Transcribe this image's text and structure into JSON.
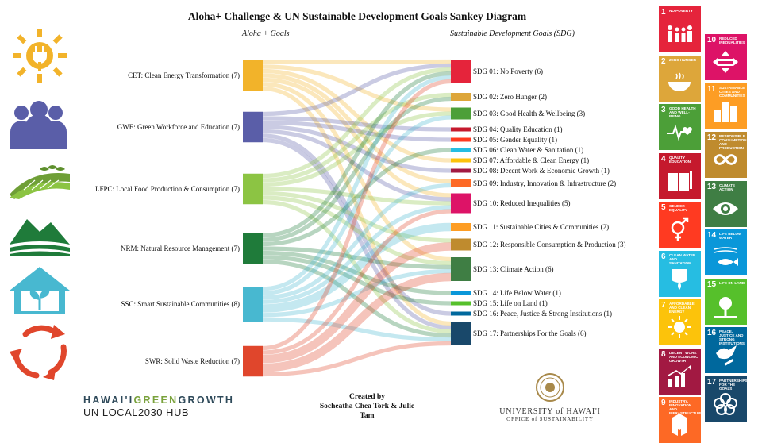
{
  "title": "Aloha+ Challenge & UN Sustainable Development Goals Sankey Diagram",
  "left_header": "Aloha + Goals",
  "right_header": "Sustainable Development Goals (SDG)",
  "aloha_goals": [
    {
      "id": "CET",
      "label": "CET: Clean Energy Transformation (7)",
      "color": "#f2b32a",
      "icon": "sun-plug-icon"
    },
    {
      "id": "GWE",
      "label": "GWE: Green Workforce and Education (7)",
      "color": "#5a5ea8",
      "icon": "people-icon"
    },
    {
      "id": "LFPC",
      "label": "LFPC: Local Food Production & Consumption (7)",
      "color": "#8cc443",
      "icon": "farm-field-icon"
    },
    {
      "id": "NRM",
      "label": "NRM: Natural Resource Management (7)",
      "color": "#1f7b3a",
      "icon": "mountains-icon"
    },
    {
      "id": "SSC",
      "label": "SSC: Smart Sustainable Communities (8)",
      "color": "#48b8d0",
      "icon": "house-plant-icon"
    },
    {
      "id": "SWR",
      "label": "SWR: Solid Waste Reduction (7)",
      "color": "#e0462c",
      "icon": "recycle-arrows-icon"
    }
  ],
  "sdg_targets": [
    {
      "id": "SDG01",
      "label": "SDG 01: No Poverty (6)",
      "color": "#e5243b"
    },
    {
      "id": "SDG02",
      "label": "SDG 02: Zero Hunger (2)",
      "color": "#dda63a"
    },
    {
      "id": "SDG03",
      "label": "SDG 03: Good Health & Wellbeing (3)",
      "color": "#4c9f38"
    },
    {
      "id": "SDG04",
      "label": "SDG 04: Quality Education (1)",
      "color": "#c5192d"
    },
    {
      "id": "SDG05",
      "label": "SDG 05: Gender Equality (1)",
      "color": "#ff3a21"
    },
    {
      "id": "SDG06",
      "label": "SDG 06: Clean Water & Sanitation (1)",
      "color": "#26bde2"
    },
    {
      "id": "SDG07",
      "label": "SDG 07: Affordable & Clean Energy (1)",
      "color": "#fcc30b"
    },
    {
      "id": "SDG08",
      "label": "SDG 08: Decent Work & Economic Growth (1)",
      "color": "#a21942"
    },
    {
      "id": "SDG09",
      "label": "SDG 09: Industry, Innovation & Infrastructure (2)",
      "color": "#fd6925"
    },
    {
      "id": "SDG10",
      "label": "SDG 10: Reduced Inequalities (5)",
      "color": "#dd1367"
    },
    {
      "id": "SDG11",
      "label": "SDG 11: Sustainable Cities & Communities (2)",
      "color": "#fd9d24"
    },
    {
      "id": "SDG12",
      "label": "SDG 12: Responsible Consumption & Production (3)",
      "color": "#bf8b2e"
    },
    {
      "id": "SDG13",
      "label": "SDG 13: Climate Action (6)",
      "color": "#3f7e44"
    },
    {
      "id": "SDG14",
      "label": "SDG 14: Life Below Water (1)",
      "color": "#0a97d9"
    },
    {
      "id": "SDG15",
      "label": "SDG 15: Life on Land (1)",
      "color": "#56c02b"
    },
    {
      "id": "SDG16",
      "label": "SDG 16: Peace, Justice & Strong Institutions (1)",
      "color": "#00689d"
    },
    {
      "id": "SDG17",
      "label": "SDG 17: Partnerships For the Goals (6)",
      "color": "#19486a"
    }
  ],
  "links": [
    {
      "from": "CET",
      "to": "SDG01",
      "value": 1
    },
    {
      "from": "CET",
      "to": "SDG03",
      "value": 1
    },
    {
      "from": "CET",
      "to": "SDG07",
      "value": 1
    },
    {
      "from": "CET",
      "to": "SDG09",
      "value": 1
    },
    {
      "from": "CET",
      "to": "SDG10",
      "value": 1
    },
    {
      "from": "CET",
      "to": "SDG13",
      "value": 1
    },
    {
      "from": "CET",
      "to": "SDG17",
      "value": 1
    },
    {
      "from": "GWE",
      "to": "SDG01",
      "value": 1
    },
    {
      "from": "GWE",
      "to": "SDG04",
      "value": 1
    },
    {
      "from": "GWE",
      "to": "SDG05",
      "value": 1
    },
    {
      "from": "GWE",
      "to": "SDG08",
      "value": 1
    },
    {
      "from": "GWE",
      "to": "SDG10",
      "value": 1
    },
    {
      "from": "GWE",
      "to": "SDG16",
      "value": 1
    },
    {
      "from": "GWE",
      "to": "SDG17",
      "value": 1
    },
    {
      "from": "LFPC",
      "to": "SDG01",
      "value": 1
    },
    {
      "from": "LFPC",
      "to": "SDG02",
      "value": 1
    },
    {
      "from": "LFPC",
      "to": "SDG03",
      "value": 1
    },
    {
      "from": "LFPC",
      "to": "SDG10",
      "value": 1
    },
    {
      "from": "LFPC",
      "to": "SDG12",
      "value": 1
    },
    {
      "from": "LFPC",
      "to": "SDG13",
      "value": 1
    },
    {
      "from": "LFPC",
      "to": "SDG17",
      "value": 1
    },
    {
      "from": "NRM",
      "to": "SDG01",
      "value": 1
    },
    {
      "from": "NRM",
      "to": "SDG02",
      "value": 1
    },
    {
      "from": "NRM",
      "to": "SDG06",
      "value": 1
    },
    {
      "from": "NRM",
      "to": "SDG13",
      "value": 1
    },
    {
      "from": "NRM",
      "to": "SDG14",
      "value": 1
    },
    {
      "from": "NRM",
      "to": "SDG15",
      "value": 1
    },
    {
      "from": "NRM",
      "to": "SDG17",
      "value": 1
    },
    {
      "from": "SSC",
      "to": "SDG01",
      "value": 1
    },
    {
      "from": "SSC",
      "to": "SDG03",
      "value": 1
    },
    {
      "from": "SSC",
      "to": "SDG09",
      "value": 1
    },
    {
      "from": "SSC",
      "to": "SDG10",
      "value": 1
    },
    {
      "from": "SSC",
      "to": "SDG11",
      "value": 2
    },
    {
      "from": "SSC",
      "to": "SDG13",
      "value": 1
    },
    {
      "from": "SSC",
      "to": "SDG17",
      "value": 1
    },
    {
      "from": "SWR",
      "to": "SDG01",
      "value": 1
    },
    {
      "from": "SWR",
      "to": "SDG10",
      "value": 1
    },
    {
      "from": "SWR",
      "to": "SDG12",
      "value": 2
    },
    {
      "from": "SWR",
      "to": "SDG13",
      "value": 2
    },
    {
      "from": "SWR",
      "to": "SDG17",
      "value": 1
    }
  ],
  "branding": {
    "hawaii_part1": "HAWAI'I",
    "hawaii_part2": "GREEN",
    "hawaii_part3": "GROWTH",
    "hub": "UN LOCAL2030 HUB"
  },
  "credit": {
    "line1": "Created by",
    "line2": "Socheatha Chea Tork & Julie",
    "line3": "Tam"
  },
  "university": {
    "name": "UNIVERSITY of HAWAI'I",
    "office": "OFFICE of SUSTAINABILITY"
  },
  "sdg_tiles": [
    {
      "num": "1",
      "title": "No Poverty",
      "color": "#e5243b",
      "icon": "people-family-icon"
    },
    {
      "num": "2",
      "title": "Zero Hunger",
      "color": "#dda63a",
      "icon": "food-bowl-icon"
    },
    {
      "num": "3",
      "title": "Good Health and Well-Being",
      "color": "#4c9f38",
      "icon": "heartbeat-icon"
    },
    {
      "num": "4",
      "title": "Quality Education",
      "color": "#c5192d",
      "icon": "book-pencil-icon"
    },
    {
      "num": "5",
      "title": "Gender Equality",
      "color": "#ff3a21",
      "icon": "gender-symbol-icon"
    },
    {
      "num": "6",
      "title": "Clean Water and Sanitation",
      "color": "#26bde2",
      "icon": "water-drop-icon"
    },
    {
      "num": "7",
      "title": "Affordable and Clean Energy",
      "color": "#fcc30b",
      "icon": "sun-power-icon"
    },
    {
      "num": "8",
      "title": "Decent Work and Economic Growth",
      "color": "#a21942",
      "icon": "growth-chart-icon"
    },
    {
      "num": "9",
      "title": "Industry, Innovation and Infrastructure",
      "color": "#fd6925",
      "icon": "cubes-icon"
    },
    {
      "num": "10",
      "title": "Reduced Inequalities",
      "color": "#dd1367",
      "icon": "equal-arrows-icon"
    },
    {
      "num": "11",
      "title": "Sustainable Cities and Communities",
      "color": "#fd9d24",
      "icon": "buildings-icon"
    },
    {
      "num": "12",
      "title": "Responsible Consumption and Production",
      "color": "#bf8b2e",
      "icon": "infinity-icon"
    },
    {
      "num": "13",
      "title": "Climate Action",
      "color": "#3f7e44",
      "icon": "eye-globe-icon"
    },
    {
      "num": "14",
      "title": "Life Below Water",
      "color": "#0a97d9",
      "icon": "fish-icon"
    },
    {
      "num": "15",
      "title": "Life on Land",
      "color": "#56c02b",
      "icon": "tree-birds-icon"
    },
    {
      "num": "16",
      "title": "Peace, Justice and Strong Institutions",
      "color": "#00689d",
      "icon": "dove-gavel-icon"
    },
    {
      "num": "17",
      "title": "Partnerships for the Goals",
      "color": "#19486a",
      "icon": "rings-icon"
    }
  ]
}
